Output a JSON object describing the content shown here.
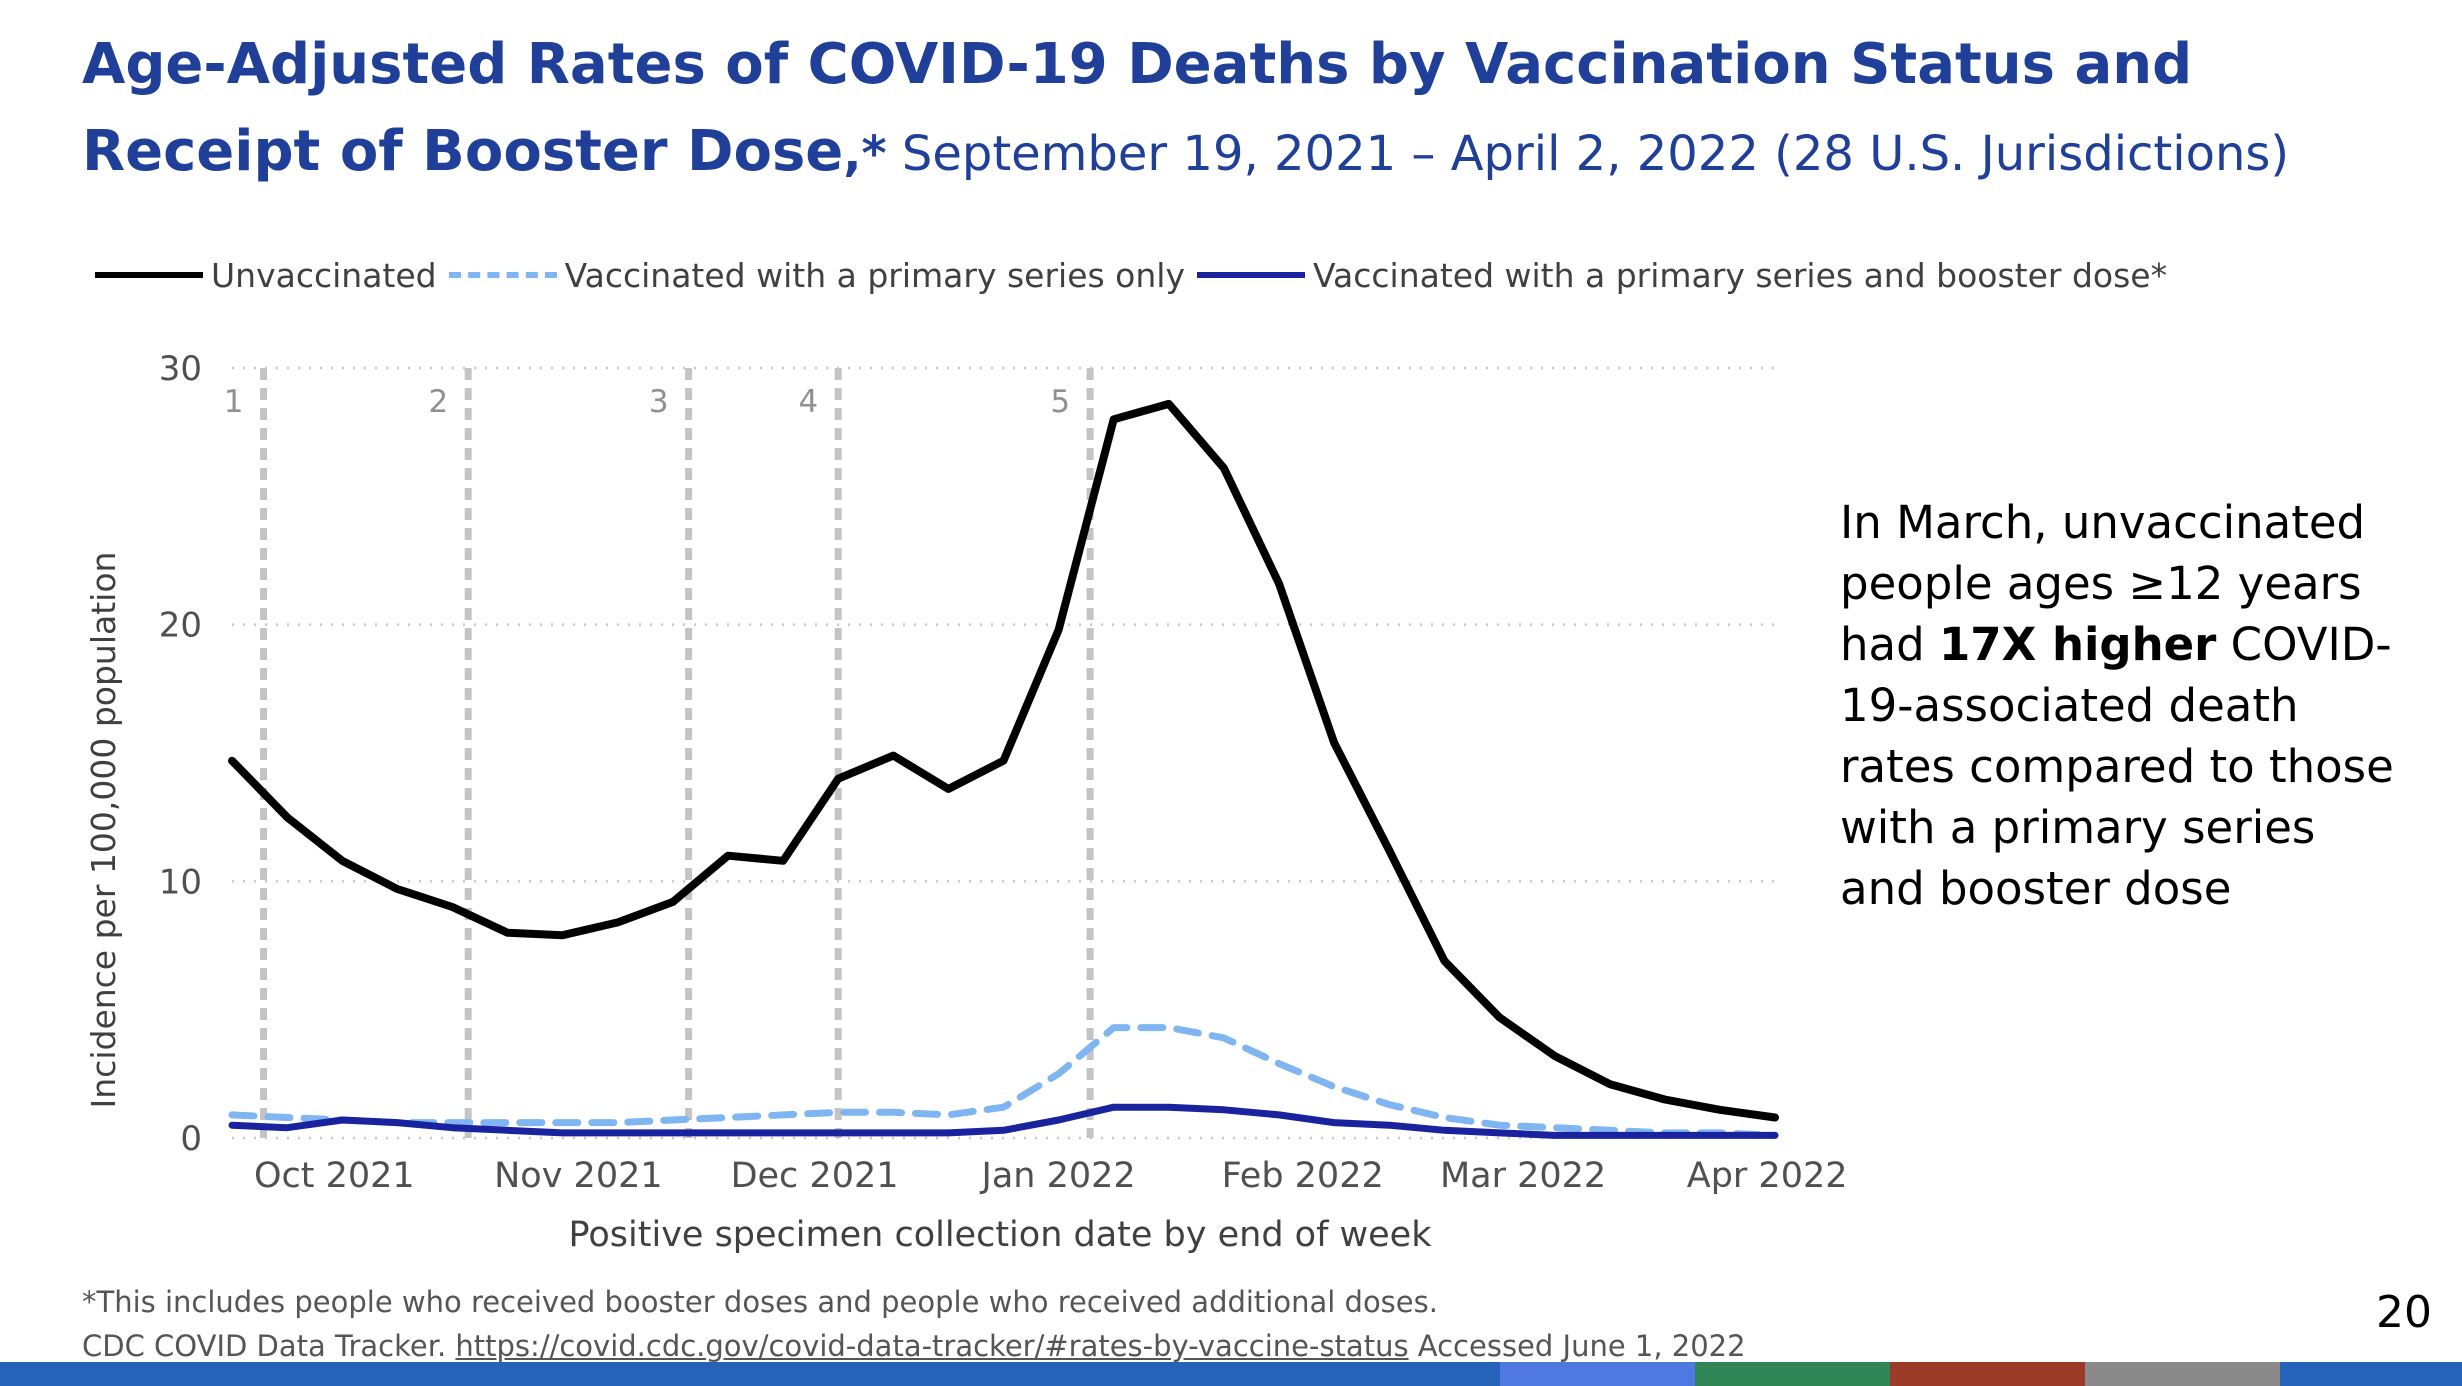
{
  "header": {
    "title_main": "Age-Adjusted Rates of COVID-19 Deaths by Vaccination Status and Receipt of Booster Dose",
    "title_star": ",*",
    "title_sub": " September 19, 2021 – April 2, 2022 (28 U.S. Jurisdictions)"
  },
  "callout": {
    "pre": "In March, unvaccinated people ages ≥12 years had ",
    "bold": "17X higher",
    "post": " COVID-19-associated death rates compared to those with a primary series and booster dose"
  },
  "footnote": {
    "line1": "*This includes  people who received booster doses and people who received additional doses.",
    "line2_pre": "CDC COVID Data Tracker. ",
    "link": "https://covid.cdc.gov/covid-data-tracker/#rates-by-vaccine-status",
    "line2_post": " Accessed  June 1, 2022"
  },
  "page_number": "20",
  "colors": {
    "title": "#1f3f99",
    "unvaccinated": "#000000",
    "primary_only": "#7fb5f0",
    "booster": "#1a239e",
    "gridline": "#c8c8c8",
    "period_marker": "#c4c4c4",
    "bottom_bar": [
      "#2563b8",
      "#4f79e0",
      "#2e8556",
      "#9c3a28",
      "#8a8a8a",
      "#2563b8"
    ]
  },
  "chart_data": {
    "type": "line",
    "ylabel": "Incidence per 100,000 population",
    "xlabel": "Positive specimen collection date by end of week",
    "ylim": [
      0,
      30
    ],
    "yticks": [
      0,
      10,
      20,
      30
    ],
    "grid": "horizontal dotted",
    "legend_position": "top",
    "x_range": [
      "2021-09-18",
      "2022-04-02"
    ],
    "x_tick_labels": [
      {
        "date": "2021-10-01",
        "label": "Oct 2021"
      },
      {
        "date": "2021-11-01",
        "label": "Nov 2021"
      },
      {
        "date": "2021-12-01",
        "label": "Dec 2021"
      },
      {
        "date": "2022-01-01",
        "label": "Jan 2022"
      },
      {
        "date": "2022-02-01",
        "label": "Feb 2022"
      },
      {
        "date": "2022-03-01",
        "label": "Mar 2022"
      },
      {
        "date": "2022-04-01",
        "label": "Apr 2022"
      }
    ],
    "period_markers": [
      {
        "label": "1",
        "date": "2021-09-22"
      },
      {
        "label": "2",
        "date": "2021-10-18"
      },
      {
        "label": "3",
        "date": "2021-11-15"
      },
      {
        "label": "4",
        "date": "2021-12-04"
      },
      {
        "label": "5",
        "date": "2022-01-05"
      }
    ],
    "x": [
      "2021-09-18",
      "2021-09-25",
      "2021-10-02",
      "2021-10-09",
      "2021-10-16",
      "2021-10-23",
      "2021-10-30",
      "2021-11-06",
      "2021-11-13",
      "2021-11-20",
      "2021-11-27",
      "2021-12-04",
      "2021-12-11",
      "2021-12-18",
      "2021-12-25",
      "2022-01-01",
      "2022-01-08",
      "2022-01-15",
      "2022-01-22",
      "2022-01-29",
      "2022-02-05",
      "2022-02-12",
      "2022-02-19",
      "2022-02-26",
      "2022-03-05",
      "2022-03-12",
      "2022-03-19",
      "2022-03-26",
      "2022-04-02"
    ],
    "series": [
      {
        "name": "Unvaccinated",
        "style": "solid",
        "values": [
          14.7,
          12.5,
          10.8,
          9.7,
          9.0,
          8.0,
          7.9,
          8.4,
          9.2,
          11.0,
          10.8,
          14.0,
          14.9,
          13.6,
          14.7,
          19.8,
          28.0,
          28.6,
          26.1,
          21.6,
          15.4,
          11.2,
          6.9,
          4.7,
          3.2,
          2.1,
          1.5,
          1.1,
          0.8
        ]
      },
      {
        "name": "Vaccinated with a primary series only",
        "style": "dashed",
        "values": [
          0.9,
          0.8,
          0.7,
          0.6,
          0.6,
          0.6,
          0.6,
          0.6,
          0.7,
          0.8,
          0.9,
          1.0,
          1.0,
          0.9,
          1.2,
          2.5,
          4.3,
          4.3,
          3.9,
          2.9,
          2.0,
          1.3,
          0.8,
          0.5,
          0.4,
          0.3,
          0.2,
          0.2,
          0.1
        ]
      },
      {
        "name": "Vaccinated with a primary series and booster dose*",
        "style": "solid",
        "values": [
          0.5,
          0.4,
          0.7,
          0.6,
          0.4,
          0.3,
          0.2,
          0.2,
          0.2,
          0.2,
          0.2,
          0.2,
          0.2,
          0.2,
          0.3,
          0.7,
          1.2,
          1.2,
          1.1,
          0.9,
          0.6,
          0.5,
          0.3,
          0.2,
          0.1,
          0.1,
          0.1,
          0.1,
          0.1
        ]
      }
    ]
  }
}
